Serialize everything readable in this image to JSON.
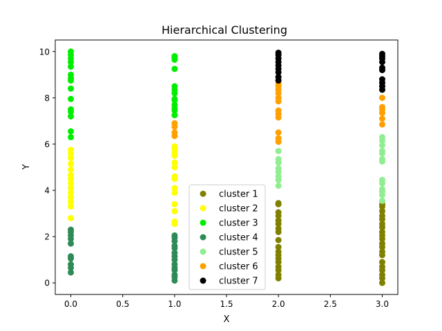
{
  "chart_data": {
    "type": "scatter",
    "title": "Hierarchical Clustering",
    "xlabel": "X",
    "ylabel": "Y",
    "xlim": [
      -0.15,
      3.15
    ],
    "ylim": [
      -0.5,
      10.5
    ],
    "xticks": [
      0.0,
      0.5,
      1.0,
      1.5,
      2.0,
      2.5,
      3.0
    ],
    "xtick_labels": [
      "0.0",
      "0.5",
      "1.0",
      "1.5",
      "2.0",
      "2.5",
      "3.0"
    ],
    "yticks": [
      0,
      2,
      4,
      6,
      8,
      10
    ],
    "ytick_labels": [
      "0",
      "2",
      "4",
      "6",
      "8",
      "10"
    ],
    "grid": false,
    "legend_position": "bottom-center",
    "series": [
      {
        "name": "cluster 1",
        "color": "#808000",
        "points": [
          [
            2,
            0.2
          ],
          [
            2,
            0.35
          ],
          [
            2,
            0.55
          ],
          [
            2,
            0.7
          ],
          [
            2,
            0.9
          ],
          [
            2,
            1.05
          ],
          [
            2,
            1.2
          ],
          [
            2,
            1.35
          ],
          [
            2,
            1.55
          ],
          [
            2,
            1.85
          ],
          [
            2,
            2.2
          ],
          [
            2,
            2.35
          ],
          [
            2,
            2.55
          ],
          [
            2,
            2.7
          ],
          [
            2,
            2.9
          ],
          [
            2,
            3.05
          ],
          [
            2,
            3.4
          ],
          [
            2,
            3.45
          ],
          [
            3,
            0.0
          ],
          [
            3,
            0.2
          ],
          [
            3,
            0.35
          ],
          [
            3,
            0.55
          ],
          [
            3,
            0.7
          ],
          [
            3,
            0.9
          ],
          [
            3,
            1.2
          ],
          [
            3,
            1.35
          ],
          [
            3,
            1.55
          ],
          [
            3,
            1.7
          ],
          [
            3,
            1.9
          ],
          [
            3,
            2.05
          ],
          [
            3,
            2.2
          ],
          [
            3,
            2.4
          ],
          [
            3,
            2.55
          ],
          [
            3,
            2.75
          ],
          [
            3,
            2.9
          ],
          [
            3,
            3.1
          ],
          [
            3,
            3.3
          ],
          [
            3,
            3.4
          ]
        ]
      },
      {
        "name": "cluster 2",
        "color": "#ffff00",
        "points": [
          [
            0,
            2.8
          ],
          [
            0,
            3.3
          ],
          [
            0,
            3.5
          ],
          [
            0,
            3.7
          ],
          [
            0,
            3.9
          ],
          [
            0,
            4.1
          ],
          [
            0,
            4.3
          ],
          [
            0,
            4.5
          ],
          [
            0,
            4.65
          ],
          [
            0,
            4.9
          ],
          [
            0,
            5.15
          ],
          [
            0,
            5.4
          ],
          [
            0,
            5.6
          ],
          [
            0,
            5.75
          ],
          [
            1,
            2.55
          ],
          [
            1,
            2.65
          ],
          [
            1,
            3.1
          ],
          [
            1,
            3.4
          ],
          [
            1,
            3.9
          ],
          [
            1,
            4.1
          ],
          [
            1,
            4.5
          ],
          [
            1,
            4.6
          ],
          [
            1,
            5.0
          ],
          [
            1,
            5.2
          ],
          [
            1,
            5.5
          ],
          [
            1,
            5.65
          ],
          [
            1,
            5.8
          ],
          [
            1,
            5.9
          ]
        ]
      },
      {
        "name": "cluster 3",
        "color": "#00ee00",
        "points": [
          [
            0,
            6.3
          ],
          [
            0,
            6.55
          ],
          [
            0,
            7.2
          ],
          [
            0,
            7.4
          ],
          [
            0,
            7.5
          ],
          [
            0,
            7.95
          ],
          [
            0,
            8.4
          ],
          [
            0,
            8.75
          ],
          [
            0,
            8.85
          ],
          [
            0,
            9.0
          ],
          [
            0,
            9.35
          ],
          [
            0,
            9.55
          ],
          [
            0,
            9.7
          ],
          [
            0,
            9.85
          ],
          [
            0,
            10.0
          ],
          [
            1,
            7.25
          ],
          [
            1,
            7.45
          ],
          [
            1,
            7.55
          ],
          [
            1,
            7.7
          ],
          [
            1,
            7.9
          ],
          [
            1,
            7.95
          ],
          [
            1,
            8.2
          ],
          [
            1,
            8.35
          ],
          [
            1,
            8.5
          ],
          [
            1,
            9.25
          ],
          [
            1,
            9.65
          ],
          [
            1,
            9.75
          ],
          [
            1,
            9.8
          ]
        ]
      },
      {
        "name": "cluster 4",
        "color": "#2e8b57",
        "points": [
          [
            0,
            0.45
          ],
          [
            0,
            0.65
          ],
          [
            0,
            0.8
          ],
          [
            0,
            1.05
          ],
          [
            0,
            1.15
          ],
          [
            0,
            1.7
          ],
          [
            0,
            1.9
          ],
          [
            0,
            2.05
          ],
          [
            0,
            2.2
          ],
          [
            0,
            2.3
          ],
          [
            1,
            0.1
          ],
          [
            1,
            0.25
          ],
          [
            1,
            0.35
          ],
          [
            1,
            0.55
          ],
          [
            1,
            0.65
          ],
          [
            1,
            0.8
          ],
          [
            1,
            1.0
          ],
          [
            1,
            1.15
          ],
          [
            1,
            1.3
          ],
          [
            1,
            1.5
          ],
          [
            1,
            1.6
          ],
          [
            1,
            1.8
          ],
          [
            1,
            1.95
          ],
          [
            1,
            2.05
          ]
        ]
      },
      {
        "name": "cluster 5",
        "color": "#90ee90",
        "points": [
          [
            2,
            4.2
          ],
          [
            2,
            4.45
          ],
          [
            2,
            4.6
          ],
          [
            2,
            4.8
          ],
          [
            2,
            4.95
          ],
          [
            2,
            5.2
          ],
          [
            2,
            5.35
          ],
          [
            2,
            5.7
          ],
          [
            3,
            3.55
          ],
          [
            3,
            3.8
          ],
          [
            3,
            3.95
          ],
          [
            3,
            4.05
          ],
          [
            3,
            4.3
          ],
          [
            3,
            4.45
          ],
          [
            3,
            5.25
          ],
          [
            3,
            5.35
          ],
          [
            3,
            5.6
          ],
          [
            3,
            5.7
          ],
          [
            3,
            5.95
          ],
          [
            3,
            6.15
          ],
          [
            3,
            6.3
          ]
        ]
      },
      {
        "name": "cluster 6",
        "color": "#ffa000",
        "points": [
          [
            1,
            6.35
          ],
          [
            1,
            6.5
          ],
          [
            1,
            6.75
          ],
          [
            1,
            6.9
          ],
          [
            2,
            6.1
          ],
          [
            2,
            6.25
          ],
          [
            2,
            6.5
          ],
          [
            2,
            7.15
          ],
          [
            2,
            7.3
          ],
          [
            2,
            7.45
          ],
          [
            2,
            7.85
          ],
          [
            2,
            8.0
          ],
          [
            2,
            8.2
          ],
          [
            2,
            8.35
          ],
          [
            2,
            8.5
          ],
          [
            2,
            8.6
          ],
          [
            3,
            6.85
          ],
          [
            3,
            7.1
          ],
          [
            3,
            7.35
          ],
          [
            3,
            7.5
          ],
          [
            3,
            7.6
          ],
          [
            3,
            8.0
          ]
        ]
      },
      {
        "name": "cluster 7",
        "color": "#000000",
        "points": [
          [
            2,
            8.75
          ],
          [
            2,
            8.9
          ],
          [
            2,
            9.1
          ],
          [
            2,
            9.25
          ],
          [
            2,
            9.4
          ],
          [
            2,
            9.55
          ],
          [
            2,
            9.7
          ],
          [
            2,
            9.85
          ],
          [
            2,
            9.95
          ],
          [
            3,
            8.35
          ],
          [
            3,
            8.5
          ],
          [
            3,
            8.65
          ],
          [
            3,
            8.8
          ],
          [
            3,
            9.2
          ],
          [
            3,
            9.3
          ],
          [
            3,
            9.55
          ],
          [
            3,
            9.7
          ],
          [
            3,
            9.8
          ],
          [
            3,
            9.9
          ]
        ]
      }
    ]
  }
}
